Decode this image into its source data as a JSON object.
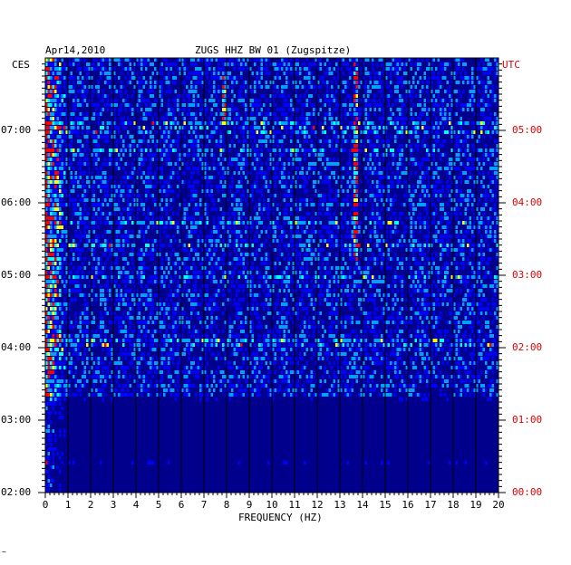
{
  "header": {
    "date": "Apr14,2010",
    "station": "ZUGS HHZ BW 01 (Zugspitze)"
  },
  "chart_data": {
    "type": "heatmap",
    "title": "ZUGS HHZ BW 01 (Zugspitze)",
    "xlabel": "FREQUENCY (HZ)",
    "xlim": [
      0,
      20
    ],
    "x_ticks": [
      "0",
      "1",
      "2",
      "3",
      "4",
      "5",
      "6",
      "7",
      "8",
      "9",
      "10",
      "11",
      "12",
      "13",
      "14",
      "15",
      "16",
      "17",
      "18",
      "19",
      "20"
    ],
    "left_axis_label": "CES",
    "right_axis_label": "UTC",
    "left_ticks": [
      "02:00",
      "03:00",
      "04:00",
      "05:00",
      "06:00",
      "07:00"
    ],
    "right_ticks": [
      "00:00",
      "01:00",
      "02:00",
      "03:00",
      "04:00",
      "05:00"
    ],
    "time_range_ces": [
      "02:00",
      "07:55"
    ],
    "colormap": [
      "#000080",
      "#0000ff",
      "#00a0ff",
      "#00ffff",
      "#ffff00",
      "#ff0000"
    ],
    "background_color": "#00008c",
    "features": [
      {
        "kind": "noise_band",
        "freq_hz": [
          0,
          1
        ],
        "note": "high energy at low frequencies"
      },
      {
        "kind": "spectral_line",
        "freq_hz": 13.7,
        "time_ces": [
          "05:10",
          "07:55"
        ]
      },
      {
        "kind": "spectral_line",
        "freq_hz": 7.9,
        "time_ces": [
          "07:05",
          "07:45"
        ]
      }
    ]
  },
  "footer_mark": "~"
}
